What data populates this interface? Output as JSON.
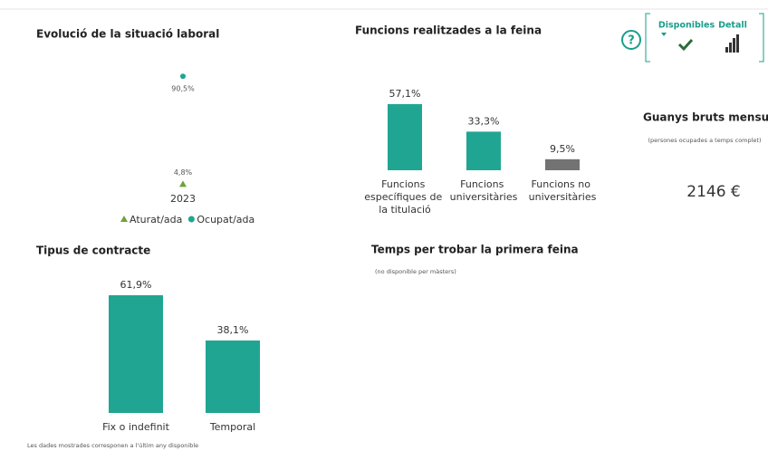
{
  "chart_data": [
    {
      "type": "line",
      "title": "Evolució de la situació laboral",
      "categories": [
        "2023"
      ],
      "ylim": [
        0,
        100
      ],
      "series": [
        {
          "name": "Aturat/ada",
          "color": "#6ea33a",
          "marker": "triangle",
          "values": [
            4.8
          ],
          "value_labels": [
            "4,8%"
          ]
        },
        {
          "name": "Ocupat/ada",
          "color": "#1fa593",
          "marker": "circle",
          "values": [
            90.5
          ],
          "value_labels": [
            "90,5%"
          ]
        }
      ]
    },
    {
      "type": "bar",
      "title": "Funcions realitzades a la feina",
      "categories": [
        "Funcions específiques de la titulació",
        "Funcions universitàries",
        "Funcions no universitàries"
      ],
      "values": [
        57.1,
        33.3,
        9.5
      ],
      "value_labels": [
        "57,1%",
        "33,3%",
        "9,5%"
      ],
      "colors": [
        "#21a593",
        "#21a593",
        "#737373"
      ],
      "ylim": [
        0,
        100
      ]
    },
    {
      "type": "bar",
      "title": "Tipus de contracte",
      "categories": [
        "Fix o indefinit",
        "Temporal"
      ],
      "values": [
        61.9,
        38.1
      ],
      "value_labels": [
        "61,9%",
        "38,1%"
      ],
      "colors": [
        "#21a593",
        "#21a593"
      ],
      "ylim": [
        0,
        100
      ]
    }
  ],
  "first_job": {
    "title": "Temps per trobar la primera feina",
    "subtitle": "(no disponible per màsters)"
  },
  "earnings": {
    "title": "Guanys bruts mensuals",
    "subtitle": "(persones ocupades a temps complet)",
    "value": "2146 €"
  },
  "controls": {
    "help": "?",
    "available": "Disponibles",
    "detail": "Detall"
  },
  "footer": "Les dades mostrades corresponen a l'últim any disponible"
}
